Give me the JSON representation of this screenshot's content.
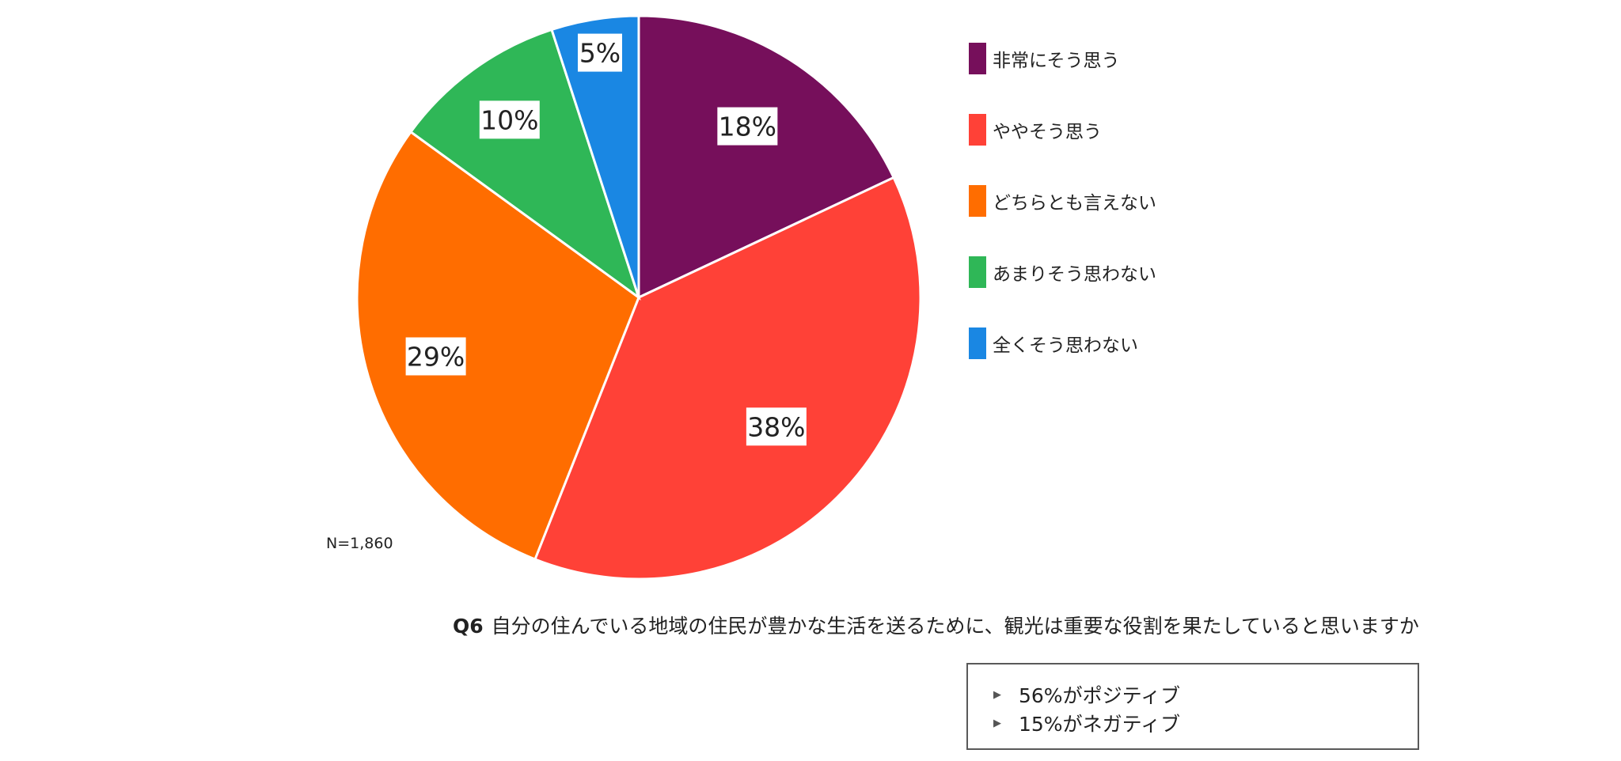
{
  "chart_data": {
    "type": "pie",
    "categories": [
      "非常にそう思う",
      "ややそう思う",
      "どちらとも言えない",
      "あまりそう思わない",
      "全くそう思わない"
    ],
    "values": [
      18,
      38,
      29,
      10,
      5
    ],
    "labels": [
      "18%",
      "38%",
      "29%",
      "10%",
      "5%"
    ],
    "colors": [
      "#760F5B",
      "#FF4137",
      "#FF6D00",
      "#2FB757",
      "#1A87E3"
    ],
    "legend_position": "right"
  },
  "legend": {
    "items": [
      {
        "label": "非常にそう思う",
        "color": "#760F5B"
      },
      {
        "label": "ややそう思う",
        "color": "#FF4137"
      },
      {
        "label": "どちらとも言えない",
        "color": "#FF6D00"
      },
      {
        "label": "あまりそう思わない",
        "color": "#2FB757"
      },
      {
        "label": "全くそう思わない",
        "color": "#1A87E3"
      }
    ]
  },
  "sample_size": "N=1,860",
  "question": {
    "id": "Q6",
    "text": "自分の住んでいる地域の住民が豊かな生活を送るために、観光は重要な役割を果たしていると思いますか"
  },
  "summary": {
    "items": [
      "56%がポジティブ",
      "15%がネガティブ"
    ],
    "bullet_icon": "triangle-right-icon"
  }
}
